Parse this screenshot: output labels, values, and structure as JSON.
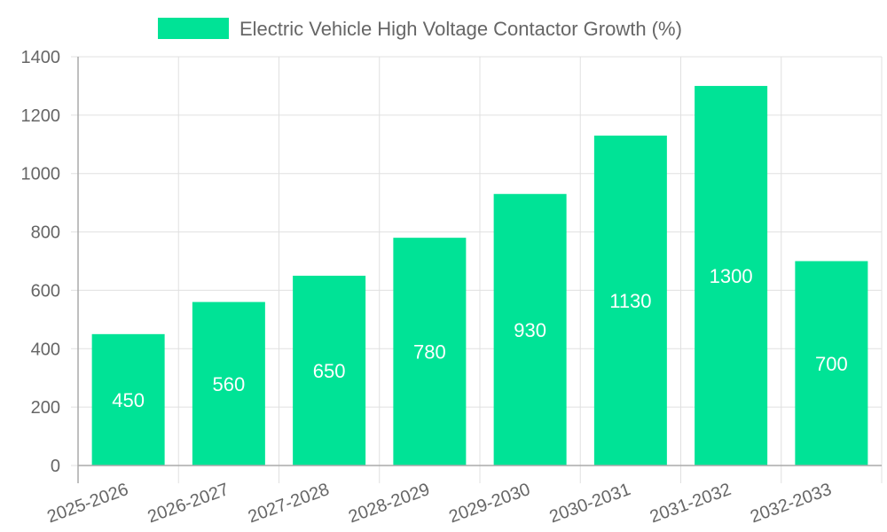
{
  "chart_data": {
    "type": "bar",
    "title": "",
    "xlabel": "",
    "ylabel": "",
    "categories": [
      "2025-2026",
      "2026-2027",
      "2027-2028",
      "2028-2029",
      "2029-2030",
      "2030-2031",
      "2031-2032",
      "2032-2033"
    ],
    "series": [
      {
        "name": "Electric Vehicle High Voltage Contactor Growth (%)",
        "values": [
          450,
          560,
          650,
          780,
          930,
          1130,
          1300,
          700
        ],
        "color": "#00e396"
      }
    ],
    "ylim": [
      0,
      1400
    ],
    "yticks": [
      0,
      200,
      400,
      600,
      800,
      1000,
      1200,
      1400
    ],
    "grid": true,
    "legend": "top-center",
    "data_labels": true,
    "data_label_position": "center",
    "colors": {
      "bar": "#00e396",
      "grid": "#e0e0e0",
      "axis": "#aaaaaa",
      "text": "#666666",
      "data_label": "#ffffff"
    }
  }
}
